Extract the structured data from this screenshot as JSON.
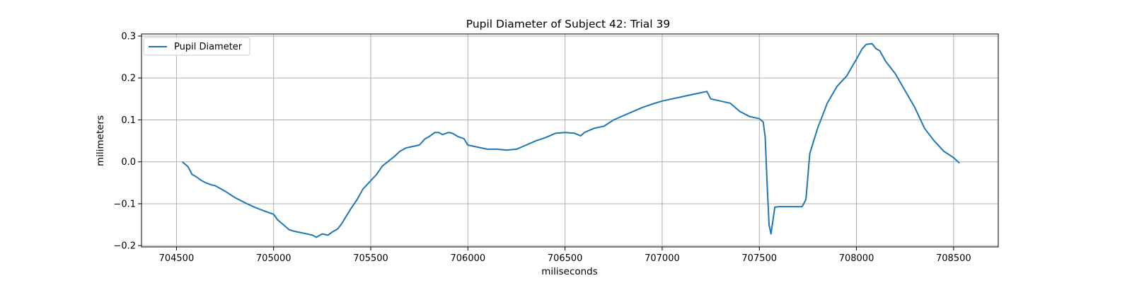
{
  "chart_data": {
    "type": "line",
    "title": "Pupil Diameter of Subject 42: Trial 39",
    "xlabel": "miliseconds",
    "ylabel": "milimeters",
    "xlim": [
      704320,
      708730
    ],
    "ylim": [
      -0.203,
      0.305
    ],
    "x_ticks": [
      704500,
      705000,
      705500,
      706000,
      706500,
      707000,
      707500,
      708000,
      708500
    ],
    "x_tick_labels": [
      "704500",
      "705000",
      "705500",
      "706000",
      "706500",
      "707000",
      "707500",
      "708000",
      "708500"
    ],
    "y_ticks": [
      -0.2,
      -0.1,
      0.0,
      0.1,
      0.2,
      0.3
    ],
    "y_tick_labels": [
      "−0.2",
      "−0.1",
      "0.0",
      "0.1",
      "0.2",
      "0.3"
    ],
    "grid": true,
    "legend_position": "top-left",
    "series": [
      {
        "name": "Pupil Diameter",
        "color": "#1f77b4",
        "x": [
          704530,
          704560,
          704580,
          704600,
          704630,
          704650,
          704680,
          704700,
          704750,
          704800,
          704850,
          704900,
          704950,
          705000,
          705020,
          705050,
          705080,
          705100,
          705150,
          705180,
          705200,
          705220,
          705250,
          705280,
          705300,
          705330,
          705350,
          705380,
          705400,
          705430,
          705460,
          705500,
          705530,
          705560,
          705600,
          705620,
          705650,
          705680,
          705700,
          705750,
          705780,
          705800,
          705830,
          705850,
          705870,
          705900,
          705920,
          705950,
          705980,
          706000,
          706050,
          706100,
          706150,
          706200,
          706250,
          706300,
          706350,
          706400,
          706450,
          706500,
          706550,
          706580,
          706600,
          706650,
          706700,
          706750,
          706800,
          706850,
          706900,
          706950,
          707000,
          707050,
          707100,
          707150,
          707200,
          707230,
          707250,
          707300,
          707350,
          707400,
          707450,
          707500,
          707520,
          707530,
          707540,
          707550,
          707560,
          707580,
          707600,
          707650,
          707700,
          707720,
          707740,
          707760,
          707800,
          707850,
          707900,
          707950,
          708000,
          708030,
          708050,
          708080,
          708100,
          708120,
          708150,
          708200,
          708250,
          708300,
          708350,
          708400,
          708450,
          708500,
          708530
        ],
        "y": [
          0.0,
          -0.012,
          -0.03,
          -0.035,
          -0.045,
          -0.05,
          -0.055,
          -0.057,
          -0.07,
          -0.085,
          -0.097,
          -0.108,
          -0.117,
          -0.125,
          -0.138,
          -0.15,
          -0.162,
          -0.165,
          -0.17,
          -0.173,
          -0.175,
          -0.18,
          -0.172,
          -0.175,
          -0.168,
          -0.16,
          -0.148,
          -0.125,
          -0.11,
          -0.09,
          -0.065,
          -0.045,
          -0.03,
          -0.01,
          0.005,
          0.012,
          0.025,
          0.033,
          0.035,
          0.04,
          0.055,
          0.06,
          0.07,
          0.07,
          0.065,
          0.07,
          0.068,
          0.06,
          0.055,
          0.04,
          0.035,
          0.03,
          0.03,
          0.028,
          0.03,
          0.04,
          0.05,
          0.058,
          0.068,
          0.07,
          0.068,
          0.062,
          0.07,
          0.08,
          0.085,
          0.1,
          0.11,
          0.12,
          0.13,
          0.138,
          0.145,
          0.15,
          0.155,
          0.16,
          0.165,
          0.168,
          0.15,
          0.145,
          0.14,
          0.12,
          0.108,
          0.103,
          0.095,
          0.06,
          -0.05,
          -0.15,
          -0.172,
          -0.108,
          -0.107,
          -0.107,
          -0.107,
          -0.107,
          -0.09,
          0.02,
          0.08,
          0.14,
          0.18,
          0.205,
          0.245,
          0.27,
          0.28,
          0.282,
          0.27,
          0.265,
          0.24,
          0.21,
          0.17,
          0.13,
          0.08,
          0.05,
          0.025,
          0.01,
          -0.003
        ]
      }
    ]
  }
}
